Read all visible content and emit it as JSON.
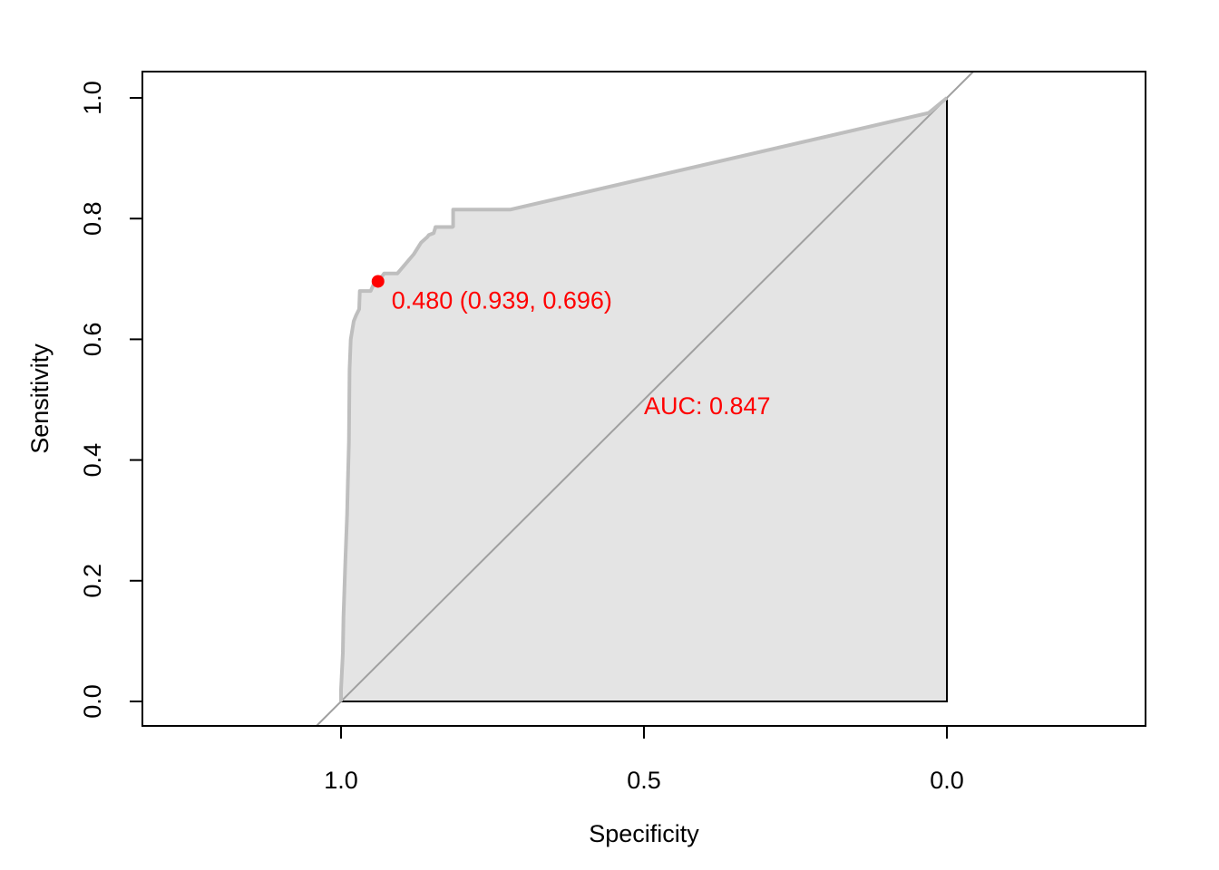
{
  "chart_data": {
    "type": "line",
    "title": "",
    "xlabel": "Specificity",
    "ylabel": "Sensitivity",
    "x_axis_reversed": true,
    "xlim": [
      1.33,
      -0.33
    ],
    "ylim": [
      -0.04,
      1.04
    ],
    "x_ticks": [
      1.0,
      0.5,
      0.0
    ],
    "x_tick_labels": [
      "1.0",
      "0.5",
      "0.0"
    ],
    "y_ticks": [
      0.0,
      0.2,
      0.4,
      0.6,
      0.8,
      1.0
    ],
    "y_tick_labels": [
      "0.0",
      "0.2",
      "0.4",
      "0.6",
      "0.8",
      "1.0"
    ],
    "grid": false,
    "auc_polygon_fill": true,
    "series": [
      {
        "color": "#bebebe",
        "x": [
          1.0,
          1.0,
          0.997,
          0.996,
          0.993,
          0.99,
          0.989,
          0.987,
          0.986,
          0.984,
          0.979,
          0.975,
          0.97,
          0.969,
          0.965,
          0.957,
          0.951,
          0.944,
          0.941,
          0.931,
          0.929,
          0.907,
          0.88,
          0.868,
          0.858,
          0.855,
          0.847,
          0.844,
          0.816,
          0.815,
          0.815,
          0.779,
          0.72,
          0.03,
          0.0
        ],
        "y": [
          0.0,
          0.02,
          0.08,
          0.14,
          0.23,
          0.31,
          0.35,
          0.43,
          0.55,
          0.6,
          0.63,
          0.64,
          0.65,
          0.68,
          0.68,
          0.68,
          0.68,
          0.696,
          0.696,
          0.706,
          0.709,
          0.709,
          0.741,
          0.76,
          0.769,
          0.773,
          0.776,
          0.786,
          0.786,
          0.787,
          0.815,
          0.815,
          0.815,
          0.975,
          1.0
        ]
      }
    ],
    "reference_line": {
      "color": "#a0a0a0",
      "slope_desc": "sensitivity = 1 - specificity"
    },
    "best_threshold": {
      "threshold": 0.48,
      "specificity": 0.939,
      "sensitivity": 0.696,
      "label": "0.480 (0.939, 0.696)",
      "color": "#ff0000"
    },
    "auc": {
      "label": "AUC: 0.847",
      "value": 0.847,
      "color": "#ff0000"
    }
  }
}
